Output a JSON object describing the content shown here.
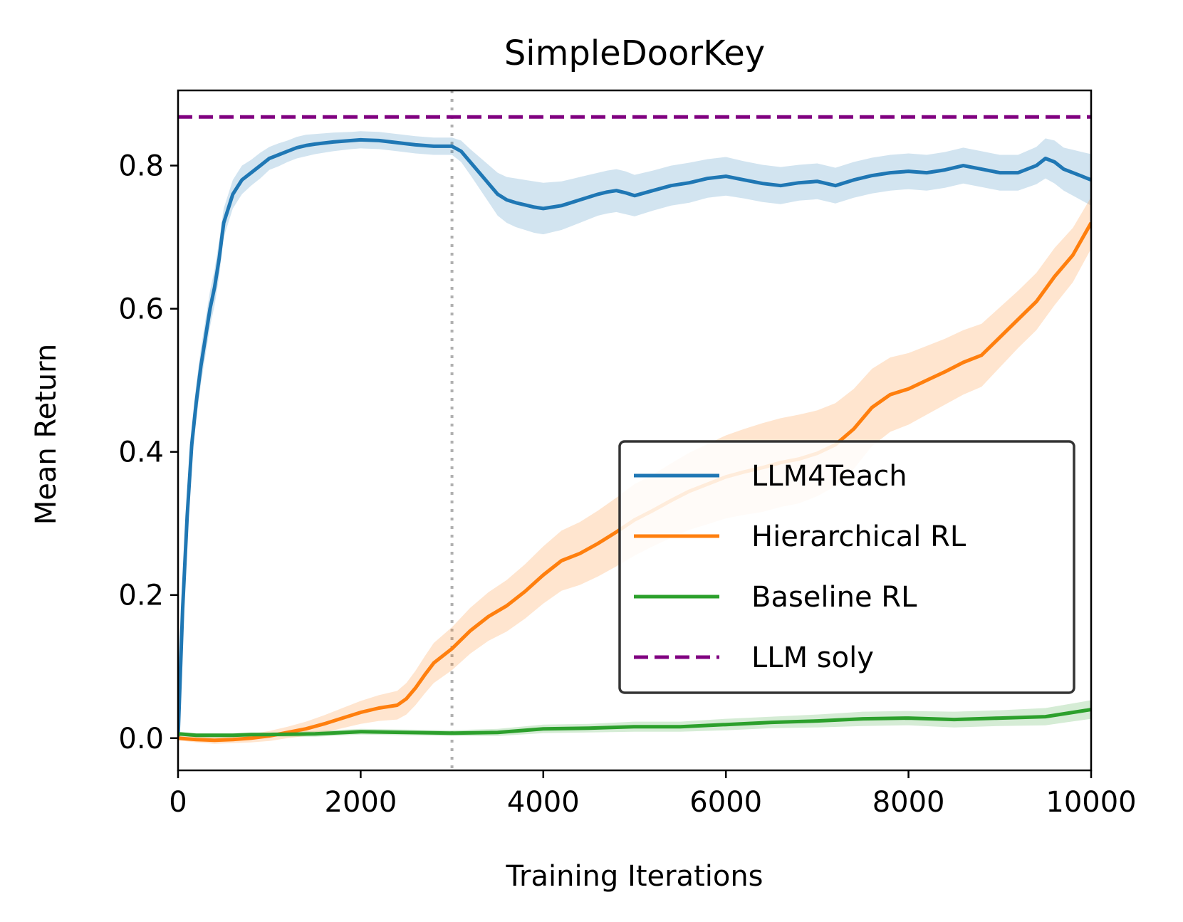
{
  "chart_data": {
    "type": "line",
    "title": "SimpleDoorKey",
    "xlabel": "Training Iterations",
    "ylabel": "Mean Return",
    "xlim": [
      0,
      10000
    ],
    "ylim": [
      -0.045,
      0.905
    ],
    "xticks": [
      0,
      2000,
      4000,
      6000,
      8000,
      10000
    ],
    "xtick_labels": [
      "0",
      "2000",
      "4000",
      "6000",
      "8000",
      "10000"
    ],
    "yticks": [
      0.0,
      0.2,
      0.4,
      0.6,
      0.8
    ],
    "ytick_labels": [
      "0.0",
      "0.2",
      "0.4",
      "0.6",
      "0.8"
    ],
    "vline": {
      "x": 3000,
      "style": "dotted",
      "color": "#b0b0b0"
    },
    "legend_position": "center-right",
    "series": [
      {
        "name": "LLM4Teach",
        "color": "#1f77b4",
        "band_color": "#1f77b4",
        "x": [
          0,
          50,
          100,
          150,
          200,
          250,
          300,
          350,
          400,
          450,
          500,
          550,
          600,
          650,
          700,
          800,
          900,
          1000,
          1100,
          1200,
          1300,
          1400,
          1500,
          1700,
          1900,
          2000,
          2200,
          2400,
          2600,
          2800,
          3000,
          3100,
          3200,
          3300,
          3400,
          3500,
          3600,
          3700,
          3800,
          3900,
          4000,
          4100,
          4200,
          4300,
          4400,
          4500,
          4600,
          4700,
          4800,
          4900,
          5000,
          5200,
          5400,
          5600,
          5800,
          6000,
          6200,
          6400,
          6600,
          6800,
          7000,
          7200,
          7400,
          7600,
          7800,
          8000,
          8200,
          8400,
          8600,
          8800,
          9000,
          9200,
          9400,
          9500,
          9600,
          9700,
          9800,
          9900,
          10000
        ],
        "values": [
          0.0,
          0.18,
          0.31,
          0.41,
          0.47,
          0.52,
          0.56,
          0.6,
          0.63,
          0.67,
          0.72,
          0.74,
          0.76,
          0.77,
          0.78,
          0.79,
          0.8,
          0.81,
          0.815,
          0.82,
          0.825,
          0.828,
          0.83,
          0.833,
          0.835,
          0.836,
          0.835,
          0.832,
          0.829,
          0.827,
          0.827,
          0.82,
          0.805,
          0.79,
          0.775,
          0.76,
          0.752,
          0.748,
          0.745,
          0.742,
          0.74,
          0.742,
          0.744,
          0.748,
          0.752,
          0.756,
          0.76,
          0.763,
          0.765,
          0.762,
          0.758,
          0.765,
          0.772,
          0.776,
          0.782,
          0.785,
          0.78,
          0.775,
          0.772,
          0.776,
          0.778,
          0.772,
          0.78,
          0.786,
          0.79,
          0.792,
          0.79,
          0.794,
          0.8,
          0.795,
          0.79,
          0.79,
          0.8,
          0.81,
          0.805,
          0.795,
          0.79,
          0.785,
          0.78
        ],
        "band": [
          0.025,
          0.025,
          0.025,
          0.025,
          0.025,
          0.025,
          0.025,
          0.025,
          0.025,
          0.025,
          0.02,
          0.02,
          0.02,
          0.02,
          0.02,
          0.018,
          0.018,
          0.016,
          0.016,
          0.015,
          0.015,
          0.015,
          0.014,
          0.013,
          0.012,
          0.012,
          0.012,
          0.012,
          0.012,
          0.012,
          0.012,
          0.015,
          0.018,
          0.022,
          0.026,
          0.03,
          0.032,
          0.034,
          0.035,
          0.036,
          0.036,
          0.035,
          0.034,
          0.033,
          0.032,
          0.031,
          0.03,
          0.03,
          0.03,
          0.03,
          0.029,
          0.028,
          0.028,
          0.028,
          0.027,
          0.027,
          0.026,
          0.026,
          0.026,
          0.025,
          0.025,
          0.025,
          0.025,
          0.025,
          0.025,
          0.025,
          0.025,
          0.025,
          0.025,
          0.025,
          0.025,
          0.025,
          0.026,
          0.028,
          0.03,
          0.03,
          0.032,
          0.034,
          0.036
        ]
      },
      {
        "name": "Hierarchical RL",
        "color": "#ff7f0e",
        "band_color": "#ff7f0e",
        "x": [
          0,
          200,
          400,
          600,
          800,
          1000,
          1200,
          1400,
          1600,
          1800,
          2000,
          2200,
          2400,
          2500,
          2600,
          2700,
          2800,
          3000,
          3200,
          3400,
          3600,
          3800,
          4000,
          4200,
          4400,
          4600,
          4800,
          5000,
          5200,
          5400,
          5600,
          5800,
          6000,
          6200,
          6400,
          6600,
          6800,
          7000,
          7200,
          7400,
          7600,
          7800,
          8000,
          8200,
          8400,
          8600,
          8800,
          9000,
          9200,
          9400,
          9600,
          9800,
          10000
        ],
        "values": [
          0.0,
          -0.002,
          -0.003,
          -0.002,
          0.0,
          0.003,
          0.008,
          0.013,
          0.02,
          0.028,
          0.036,
          0.042,
          0.046,
          0.055,
          0.07,
          0.088,
          0.105,
          0.125,
          0.15,
          0.17,
          0.185,
          0.205,
          0.228,
          0.248,
          0.258,
          0.272,
          0.288,
          0.305,
          0.318,
          0.332,
          0.345,
          0.355,
          0.365,
          0.372,
          0.378,
          0.385,
          0.39,
          0.398,
          0.41,
          0.432,
          0.462,
          0.48,
          0.488,
          0.5,
          0.512,
          0.525,
          0.535,
          0.56,
          0.585,
          0.61,
          0.645,
          0.675,
          0.72
        ],
        "band": [
          0.003,
          0.004,
          0.005,
          0.005,
          0.006,
          0.007,
          0.008,
          0.01,
          0.012,
          0.014,
          0.016,
          0.018,
          0.02,
          0.022,
          0.024,
          0.026,
          0.028,
          0.03,
          0.032,
          0.034,
          0.036,
          0.038,
          0.04,
          0.042,
          0.044,
          0.046,
          0.048,
          0.05,
          0.05,
          0.052,
          0.054,
          0.056,
          0.058,
          0.06,
          0.062,
          0.062,
          0.062,
          0.06,
          0.058,
          0.056,
          0.054,
          0.052,
          0.05,
          0.048,
          0.046,
          0.045,
          0.044,
          0.042,
          0.04,
          0.04,
          0.04,
          0.038,
          0.036
        ]
      },
      {
        "name": "Baseline RL",
        "color": "#2ca02c",
        "band_color": "#2ca02c",
        "x": [
          0,
          200,
          400,
          600,
          800,
          1000,
          1500,
          2000,
          2500,
          3000,
          3500,
          4000,
          4500,
          5000,
          5500,
          6000,
          6500,
          7000,
          7500,
          8000,
          8500,
          9000,
          9500,
          10000
        ],
        "values": [
          0.006,
          0.004,
          0.004,
          0.004,
          0.005,
          0.005,
          0.006,
          0.009,
          0.008,
          0.007,
          0.008,
          0.013,
          0.014,
          0.016,
          0.016,
          0.019,
          0.022,
          0.024,
          0.027,
          0.028,
          0.026,
          0.028,
          0.03,
          0.04
        ],
        "band": [
          0.003,
          0.003,
          0.003,
          0.003,
          0.003,
          0.003,
          0.004,
          0.004,
          0.004,
          0.004,
          0.005,
          0.006,
          0.006,
          0.007,
          0.007,
          0.008,
          0.008,
          0.009,
          0.01,
          0.01,
          0.011,
          0.011,
          0.012,
          0.013
        ]
      },
      {
        "name": "LLM soly",
        "color": "#800080",
        "style": "dashed",
        "x": [
          0,
          10000
        ],
        "values": [
          0.868,
          0.868
        ]
      }
    ]
  }
}
